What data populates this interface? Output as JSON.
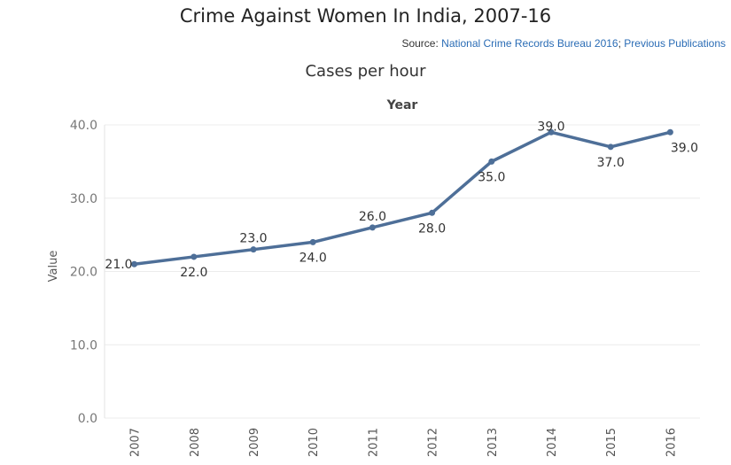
{
  "header": {
    "title": "Crime Against Women In India, 2007-16",
    "source_prefix": "Source: ",
    "source_link_1": "National Crime Records Bureau 2016",
    "source_sep": "; ",
    "source_link_2": "Previous Publications",
    "subtitle": "Cases per hour"
  },
  "colors": {
    "line": "#4e6f98",
    "grid": "#ececec",
    "axis_text": "#777777",
    "label_text": "#333333"
  },
  "chart_data": {
    "type": "line",
    "title": "Cases per hour",
    "column_header": "Year",
    "ylabel": "Value",
    "ylim": [
      0,
      40
    ],
    "y_ticks": [
      "0.0",
      "10.0",
      "20.0",
      "30.0",
      "40.0"
    ],
    "y_tick_values": [
      0,
      10,
      20,
      30,
      40
    ],
    "x": [
      "2007",
      "2008",
      "2009",
      "2010",
      "2011",
      "2012",
      "2013",
      "2014",
      "2015",
      "2016"
    ],
    "values": [
      21,
      22,
      23,
      24,
      26,
      28,
      35,
      39,
      37,
      39
    ],
    "data_labels": [
      "21.0",
      "22.0",
      "23.0",
      "24.0",
      "26.0",
      "28.0",
      "35.0",
      "39.0",
      "37.0",
      "39.0"
    ],
    "grid": true
  }
}
